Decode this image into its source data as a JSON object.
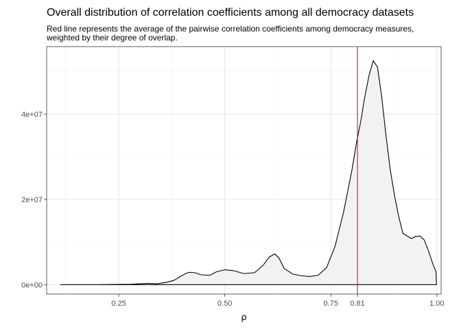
{
  "chart_data": {
    "type": "area",
    "title": "Overall distribution of correlation coefficients among all democracy datasets",
    "subtitle": [
      "Red line represents the average of the pairwise correlation coefficients among democracy measures,",
      "weighted by their degree of overlap."
    ],
    "xlabel": "ρ",
    "ylabel": "",
    "xlim": [
      0.08,
      1.01
    ],
    "ylim": [
      -2200000,
      55800000
    ],
    "x_ticks": [
      {
        "value": 0.25,
        "label": "0.25"
      },
      {
        "value": 0.5,
        "label": "0.50"
      },
      {
        "value": 0.75,
        "label": "0.75"
      },
      {
        "value": 0.8128,
        "label": "0.81"
      },
      {
        "value": 1.0,
        "label": "1.00"
      }
    ],
    "y_ticks": [
      {
        "value": 0,
        "label": "0e+00"
      },
      {
        "value": 20000000,
        "label": "2e+07"
      },
      {
        "value": 40000000,
        "label": "4e+07"
      }
    ],
    "grid": true,
    "reference_line": {
      "x": 0.8128,
      "color": "#cc0000"
    },
    "fill_color": "#f2f2f2",
    "line_color": "#000000",
    "series": [
      {
        "x": [
          0.112,
          0.2,
          0.28,
          0.3,
          0.32,
          0.34,
          0.36,
          0.38,
          0.4,
          0.415,
          0.43,
          0.445,
          0.465,
          0.48,
          0.5,
          0.52,
          0.545,
          0.57,
          0.59,
          0.605,
          0.618,
          0.628,
          0.64,
          0.66,
          0.68,
          0.7,
          0.72,
          0.74,
          0.76,
          0.78,
          0.8,
          0.81,
          0.82,
          0.83,
          0.84,
          0.85,
          0.86,
          0.87,
          0.88,
          0.89,
          0.9,
          0.91,
          0.92,
          0.94,
          0.95,
          0.96,
          0.97,
          0.98,
          0.99,
          0.998,
          0.999
        ],
        "values": [
          0,
          0,
          100000,
          200000,
          300000,
          200000,
          500000,
          1000000,
          2200000,
          2900000,
          2800000,
          2300000,
          2200000,
          3000000,
          3500000,
          3300000,
          2600000,
          2800000,
          4500000,
          6500000,
          7200000,
          6200000,
          3800000,
          2500000,
          2100000,
          1900000,
          2200000,
          4000000,
          9000000,
          17000000,
          27000000,
          33000000,
          38000000,
          44000000,
          49000000,
          52500000,
          51000000,
          44000000,
          35000000,
          27000000,
          21000000,
          16000000,
          12000000,
          10800000,
          11300000,
          11400000,
          10500000,
          8000000,
          5000000,
          3000000,
          0
        ]
      }
    ]
  }
}
